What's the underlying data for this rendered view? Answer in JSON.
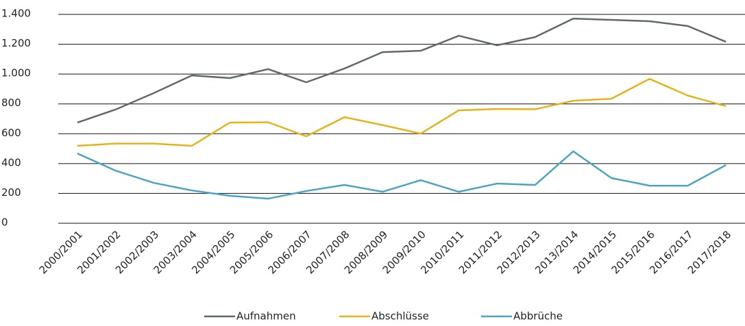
{
  "chart_data": {
    "type": "line",
    "categories": [
      "2000/2001",
      "2001/2002",
      "2002/2003",
      "2003/2004",
      "2004/2005",
      "2005/2006",
      "2006/2007",
      "2007/2008",
      "2008/2009",
      "2009/2010",
      "2010/2011",
      "2011/2012",
      "2012/2013",
      "2013/2014",
      "2014/2015",
      "2015/2016",
      "2016/2017",
      "2017/2018"
    ],
    "series": [
      {
        "name": "Aufnahmen",
        "color": "#5f6a68",
        "values": [
          675,
          762,
          872,
          991,
          973,
          1033,
          945,
          1037,
          1147,
          1156,
          1257,
          1193,
          1248,
          1372,
          1363,
          1354,
          1322,
          1216
        ]
      },
      {
        "name": "Abschlüsse",
        "color": "#e5b217",
        "values": [
          519,
          534,
          534,
          519,
          675,
          677,
          583,
          711,
          658,
          601,
          757,
          766,
          764,
          821,
          835,
          968,
          856,
          785
        ]
      },
      {
        "name": "Abbrüche",
        "color": "#4aa3c4",
        "values": [
          468,
          353,
          271,
          220,
          184,
          165,
          216,
          257,
          211,
          289,
          211,
          266,
          257,
          482,
          303,
          252,
          252,
          390
        ]
      }
    ],
    "ylim": [
      0,
      1400
    ],
    "yticks": [
      0,
      200,
      400,
      600,
      800,
      {
        "value": 1000,
        "label": "1.000"
      },
      {
        "value": 1200,
        "label": "1.200"
      },
      {
        "value": 1400,
        "label": "1.400"
      }
    ],
    "grid": true,
    "legend": "bottom"
  }
}
